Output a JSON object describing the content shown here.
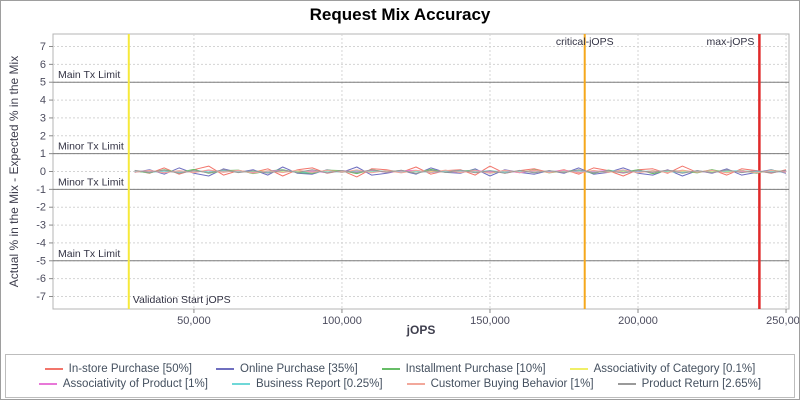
{
  "chart_data": {
    "type": "line",
    "title": "Request Mix Accuracy",
    "xlabel": "jOPS",
    "ylabel": "Actual % in the Mix - Expected % in the Mix",
    "xlim": [
      2400,
      251000
    ],
    "ylim": [
      -7.7,
      7.7
    ],
    "grid": true,
    "legend_position": "bottom",
    "x_ticks": [
      50000,
      100000,
      150000,
      200000,
      250000
    ],
    "x_tick_labels": [
      "50,000",
      "100,000",
      "150,000",
      "200,000",
      "250,000"
    ],
    "y_ticks": [
      -7,
      -6,
      -5,
      -4,
      -3,
      -2,
      -1,
      0,
      1,
      2,
      3,
      4,
      5,
      6,
      7
    ],
    "limit_lines": [
      {
        "y": 5,
        "label": "Main Tx Limit"
      },
      {
        "y": 1,
        "label": "Minor Tx Limit"
      },
      {
        "y": -1,
        "label": "Minor Tx Limit"
      },
      {
        "y": -5,
        "label": "Main Tx Limit"
      }
    ],
    "markers": [
      {
        "x": 28000,
        "label": "Validation Start jOPS",
        "color": "#f6e93a",
        "label_side": "right-bottom"
      },
      {
        "x": 182000,
        "label": "critical-jOPS",
        "color": "#f5a81c",
        "label_side": "center-top"
      },
      {
        "x": 241000,
        "label": "max-jOPS",
        "color": "#e02a2a",
        "label_side": "left-top"
      }
    ],
    "x": [
      30000,
      35000,
      40000,
      45000,
      50000,
      55000,
      60000,
      65000,
      70000,
      75000,
      80000,
      85000,
      90000,
      95000,
      100000,
      105000,
      110000,
      115000,
      120000,
      125000,
      130000,
      135000,
      140000,
      145000,
      150000,
      155000,
      160000,
      165000,
      170000,
      175000,
      180000,
      185000,
      190000,
      195000,
      200000,
      205000,
      210000,
      215000,
      220000,
      225000,
      230000,
      235000,
      240000,
      245000,
      250000
    ],
    "series": [
      {
        "name": "In-store Purchase [50%]",
        "color": "#f2756b",
        "values": [
          0.05,
          -0.1,
          0.2,
          -0.15,
          0.1,
          0.3,
          -0.2,
          0.05,
          -0.05,
          0.15,
          -0.25,
          0.1,
          0.2,
          -0.1,
          0.05,
          -0.3,
          0.15,
          0.1,
          -0.05,
          0.25,
          -0.15,
          0.05,
          0.1,
          -0.2,
          0.3,
          -0.1,
          0.05,
          0.15,
          -0.05,
          0.1,
          -0.15,
          0.2,
          0.05,
          -0.25,
          0.1,
          0.15,
          -0.1,
          0.3,
          -0.05,
          0.1,
          -0.2,
          0.15,
          0.05,
          -0.1,
          0.1
        ]
      },
      {
        "name": "Online Purchase [35%]",
        "color": "#6f6fbf",
        "values": [
          -0.05,
          0.1,
          -0.15,
          0.2,
          -0.1,
          -0.25,
          0.15,
          -0.05,
          0.1,
          -0.2,
          0.25,
          -0.1,
          -0.15,
          0.1,
          -0.05,
          0.25,
          -0.2,
          -0.1,
          0.05,
          -0.15,
          0.2,
          -0.05,
          -0.1,
          0.15,
          -0.25,
          0.1,
          -0.05,
          -0.15,
          0.05,
          -0.1,
          0.2,
          -0.15,
          -0.05,
          0.2,
          -0.1,
          -0.2,
          0.1,
          -0.25,
          0.05,
          -0.1,
          0.15,
          -0.2,
          -0.05,
          0.1,
          -0.1
        ]
      },
      {
        "name": "Installment Purchase [10%]",
        "color": "#67bd67",
        "values": [
          0.02,
          -0.08,
          0.1,
          -0.05,
          0.12,
          -0.1,
          0.05,
          0.08,
          -0.12,
          0.03,
          0.1,
          -0.06,
          -0.1,
          0.08,
          0.05,
          -0.12,
          0.1,
          -0.03,
          0.06,
          -0.1,
          0.12,
          -0.05,
          0.03,
          0.08,
          -0.1,
          0.05,
          -0.06,
          0.1,
          -0.08,
          0.03,
          0.06,
          -0.1,
          0.08,
          -0.05,
          0.1,
          -0.12,
          0.05,
          0.03,
          -0.08,
          0.1,
          -0.05,
          0.06,
          -0.1,
          0.08,
          -0.03
        ]
      },
      {
        "name": "Associativity of Category [0.1%]",
        "color": "#f0ef67",
        "values": [
          0.01,
          -0.02,
          0.03,
          -0.01,
          0.02,
          -0.03,
          0.01,
          0.02,
          -0.01,
          0.03,
          -0.02,
          0.01,
          -0.03,
          0.02,
          0.01,
          -0.02,
          0.03,
          -0.01,
          -0.02,
          0.01,
          0.02,
          -0.03,
          0.01,
          -0.01,
          0.02,
          -0.02,
          0.03,
          -0.01,
          0.01,
          -0.02,
          0.02,
          0.01,
          -0.03,
          0.02,
          -0.01,
          0.01,
          -0.02,
          0.03,
          -0.01,
          0.02,
          -0.02,
          0.01,
          0.02,
          -0.01,
          0.01
        ]
      },
      {
        "name": "Associativity of Product [1%]",
        "color": "#e878d8",
        "values": [
          -0.02,
          0.04,
          -0.06,
          0.03,
          -0.05,
          0.07,
          -0.03,
          0.05,
          -0.07,
          0.02,
          0.06,
          -0.04,
          0.03,
          -0.07,
          0.05,
          -0.02,
          0.06,
          -0.05,
          0.03,
          0.07,
          -0.06,
          0.02,
          -0.04,
          0.06,
          -0.03,
          0.05,
          -0.07,
          0.04,
          -0.02,
          0.06,
          -0.05,
          0.02,
          0.04,
          -0.06,
          0.03,
          -0.05,
          0.07,
          -0.04,
          0.02,
          -0.06,
          0.05,
          -0.03,
          0.04,
          -0.05,
          0.02
        ]
      },
      {
        "name": "Business Report [0.25%]",
        "color": "#6fd8d8",
        "values": [
          0.03,
          -0.04,
          0.02,
          -0.05,
          0.04,
          -0.02,
          0.05,
          -0.03,
          0.02,
          -0.04,
          0.05,
          -0.02,
          -0.04,
          0.03,
          -0.05,
          0.04,
          -0.02,
          0.05,
          -0.04,
          0.02,
          -0.05,
          0.03,
          0.04,
          -0.02,
          0.05,
          -0.04,
          0.02,
          -0.05,
          0.03,
          -0.02,
          0.04,
          -0.05,
          0.02,
          0.05,
          -0.03,
          0.04,
          -0.02,
          -0.05,
          0.03,
          -0.04,
          0.02,
          0.05,
          -0.03,
          0.02,
          -0.04
        ]
      },
      {
        "name": "Customer Buying Behavior [1%]",
        "color": "#f2a89b",
        "values": [
          -0.04,
          0.06,
          -0.08,
          0.05,
          -0.06,
          0.09,
          -0.05,
          0.07,
          -0.09,
          0.04,
          -0.06,
          0.08,
          -0.05,
          0.07,
          -0.04,
          0.09,
          -0.07,
          0.05,
          -0.08,
          0.06,
          -0.04,
          0.08,
          -0.06,
          0.05,
          -0.09,
          0.07,
          -0.05,
          0.08,
          -0.06,
          0.04,
          -0.08,
          0.06,
          -0.05,
          0.09,
          -0.07,
          0.05,
          -0.06,
          0.08,
          -0.04,
          0.06,
          -0.08,
          0.05,
          -0.07,
          0.06,
          -0.04
        ]
      },
      {
        "name": "Product Return [2.65%]",
        "color": "#9a9a9a",
        "values": [
          0.06,
          -0.05,
          0.08,
          -0.1,
          0.05,
          -0.07,
          0.1,
          -0.06,
          0.04,
          -0.09,
          0.07,
          -0.05,
          0.1,
          -0.08,
          0.05,
          -0.06,
          0.09,
          -0.04,
          0.07,
          -0.1,
          0.06,
          -0.05,
          0.08,
          -0.07,
          0.04,
          -0.1,
          0.06,
          -0.08,
          0.05,
          -0.06,
          0.1,
          -0.07,
          0.04,
          -0.09,
          0.06,
          -0.05,
          0.08,
          -0.1,
          0.05,
          -0.07,
          0.09,
          -0.06,
          0.04,
          -0.08,
          0.06
        ]
      }
    ]
  }
}
